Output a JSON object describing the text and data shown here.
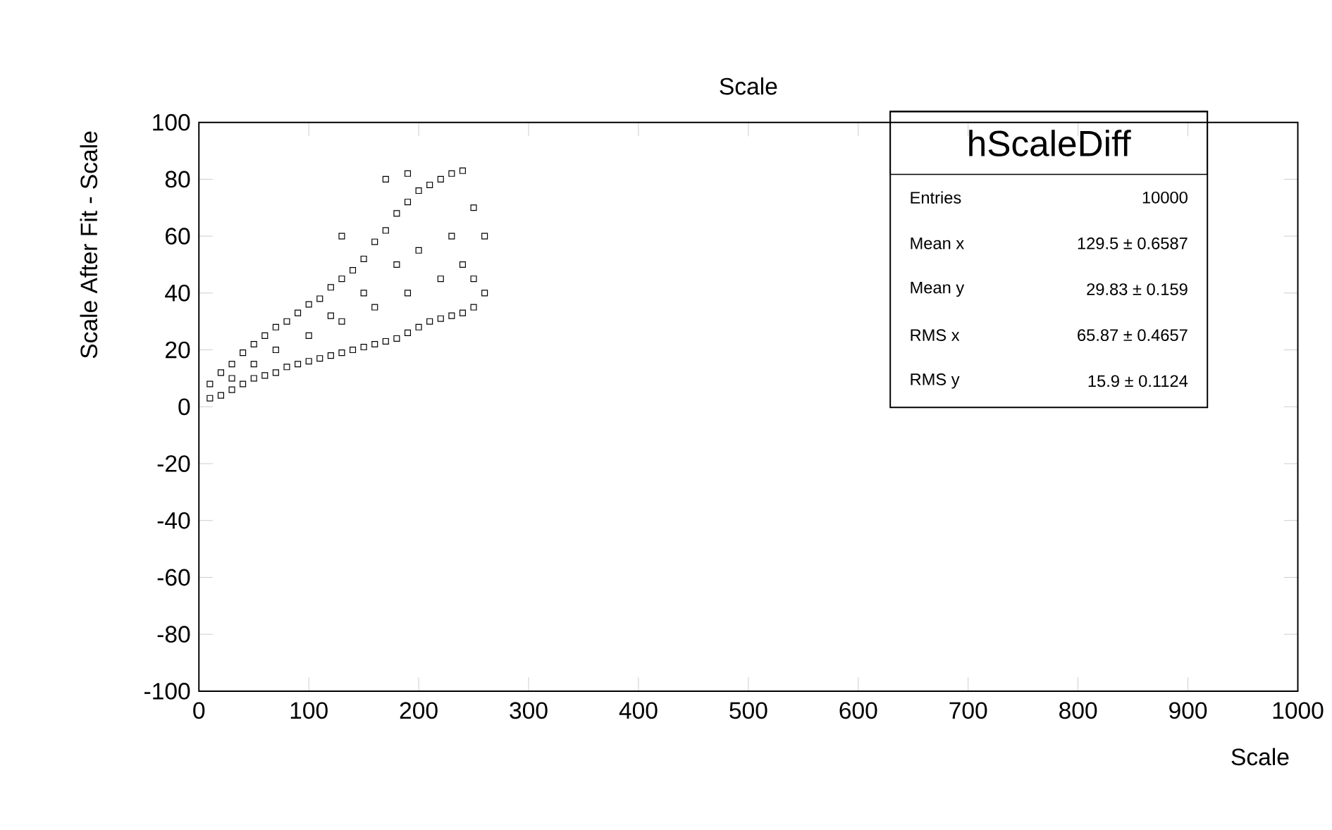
{
  "chart_data": {
    "type": "scatter",
    "title": "Scale",
    "xlabel": "Scale",
    "ylabel": "Scale After Fit - Scale",
    "xlim": [
      0,
      1000
    ],
    "ylim": [
      -100,
      100
    ],
    "xticks": [
      0,
      100,
      200,
      300,
      400,
      500,
      600,
      700,
      800,
      900,
      1000
    ],
    "yticks": [
      -100,
      -80,
      -60,
      -40,
      -20,
      0,
      20,
      40,
      60,
      80,
      100
    ],
    "grid": false,
    "marker": "square",
    "series": [
      {
        "color": "#000000",
        "x": [
          10,
          20,
          30,
          40,
          50,
          60,
          70,
          80,
          90,
          100,
          110,
          120,
          130,
          140,
          150,
          160,
          170,
          180,
          190,
          200,
          210,
          220,
          230,
          240,
          250,
          10,
          20,
          30,
          40,
          50,
          60,
          70,
          80,
          90,
          100,
          110,
          120,
          130,
          140,
          150,
          160,
          170,
          180,
          190,
          200,
          210,
          220,
          230,
          240,
          250,
          260,
          30,
          50,
          70,
          100,
          130,
          160,
          190,
          220,
          240,
          200,
          150,
          120,
          180,
          230,
          250,
          260,
          130,
          170,
          190
        ],
        "values": [
          3,
          4,
          6,
          8,
          10,
          11,
          12,
          14,
          15,
          16,
          17,
          18,
          19,
          20,
          21,
          22,
          23,
          24,
          26,
          28,
          30,
          31,
          32,
          33,
          35,
          8,
          12,
          15,
          19,
          22,
          25,
          28,
          30,
          33,
          36,
          38,
          42,
          45,
          48,
          52,
          58,
          62,
          68,
          72,
          76,
          78,
          80,
          82,
          83,
          70,
          60,
          10,
          15,
          20,
          25,
          30,
          35,
          40,
          45,
          50,
          55,
          40,
          32,
          50,
          60,
          45,
          40,
          60,
          80,
          82
        ]
      }
    ],
    "annotations": [
      "hScaleDiff",
      "Entries",
      "10000",
      "Mean x",
      "129.5 ± 0.6587",
      "Mean y",
      "29.83 ± 0.159",
      "RMS x",
      "65.87 ± 0.4657",
      "RMS y",
      "15.9 ± 0.1124"
    ]
  }
}
